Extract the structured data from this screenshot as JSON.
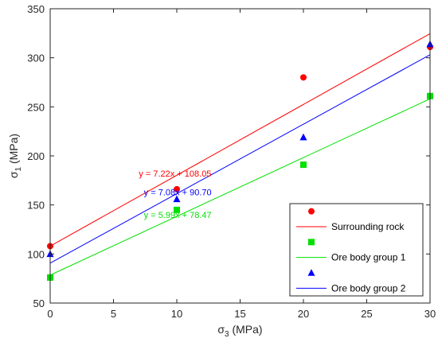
{
  "chart_data": {
    "type": "scatter",
    "xlabel": {
      "main": "σ",
      "sub": "3",
      "unit": " (MPa)"
    },
    "ylabel": {
      "main": "σ",
      "sub": "1",
      "unit": " (MPa)"
    },
    "xlim": [
      0,
      30
    ],
    "ylim": [
      50,
      350
    ],
    "xticks": [
      "0",
      "5",
      "10",
      "15",
      "20",
      "25",
      "30"
    ],
    "yticks": [
      "50",
      "100",
      "150",
      "200",
      "250",
      "300",
      "350"
    ],
    "xtick_values": [
      0,
      5,
      10,
      15,
      20,
      25,
      30
    ],
    "ytick_values": [
      50,
      100,
      150,
      200,
      250,
      300,
      350
    ],
    "grid": false,
    "legend_position": "bottom-right",
    "series": [
      {
        "name": "Surrounding rock",
        "marker": "circle",
        "color": "#ff0000",
        "x": [
          0,
          10,
          20,
          30
        ],
        "y": [
          108,
          166,
          280,
          311
        ],
        "fit": {
          "slope": 7.22,
          "intercept": 108.05,
          "label": "y = 7.22x + 108.05",
          "label_at": [
            7.0,
            182
          ]
        }
      },
      {
        "name": "Ore body group 1",
        "marker": "square",
        "color": "#00e000",
        "x": [
          0,
          10,
          20,
          30
        ],
        "y": [
          76,
          145,
          191,
          261
        ],
        "fit": {
          "slope": 5.99,
          "intercept": 78.47,
          "label": "y = 5.99x + 78.47",
          "label_at": [
            7.4,
            140
          ]
        }
      },
      {
        "name": "Ore body group 2",
        "marker": "triangle",
        "color": "#0000ff",
        "x": [
          0,
          10,
          20,
          30
        ],
        "y": [
          100,
          156,
          219,
          314
        ],
        "fit": {
          "slope": 7.08,
          "intercept": 90.7,
          "label": "y = 7.08x + 90.70",
          "label_at": [
            7.4,
            163
          ]
        }
      }
    ]
  }
}
